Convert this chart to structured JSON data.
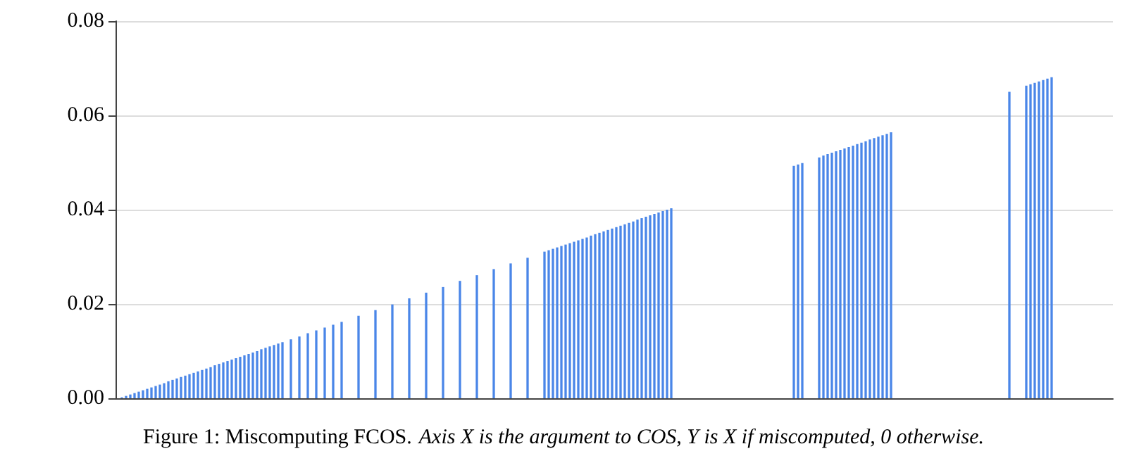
{
  "chart_data": {
    "type": "bar",
    "title": "Figure 1: Miscomputing FCOS.",
    "annotations": [
      "Axis X is the argument to COS, Y is X if miscomputed, 0 otherwise."
    ],
    "categories": [
      null,
      null,
      null,
      null,
      null,
      null,
      null,
      null,
      null,
      null,
      null,
      null,
      null,
      null,
      null,
      null,
      null,
      null,
      null,
      null,
      null,
      null,
      null,
      null,
      null,
      null,
      null,
      null,
      null,
      null,
      null,
      null,
      null,
      null,
      null,
      null,
      null,
      null,
      null,
      null,
      null,
      null,
      null,
      null,
      null,
      null,
      null,
      null,
      null,
      null,
      null,
      null,
      null,
      null,
      null,
      null,
      null,
      null,
      null,
      null,
      null,
      null,
      null,
      null,
      null,
      null,
      null,
      null,
      null,
      null,
      null,
      null,
      null,
      null,
      null,
      null,
      null,
      null,
      null,
      null,
      null,
      null,
      null,
      null,
      null,
      null,
      null,
      null,
      null,
      null,
      null,
      null,
      null,
      null,
      null,
      null,
      null,
      null,
      null,
      null,
      null,
      null,
      null,
      null,
      null,
      null,
      null,
      null,
      null,
      null,
      null,
      null,
      null,
      null,
      null,
      null,
      null,
      null,
      null,
      null,
      null,
      null,
      null,
      null,
      null,
      null,
      null,
      null,
      null,
      null,
      null,
      null,
      null,
      null,
      null,
      null,
      null,
      null,
      null,
      null,
      null,
      null,
      null,
      null,
      null,
      null,
      null,
      null,
      null,
      null,
      null,
      null,
      null,
      null,
      null,
      null,
      null,
      null,
      null,
      null,
      null,
      null,
      null,
      null,
      null,
      null,
      null,
      null,
      null,
      null,
      null,
      null,
      null,
      null,
      null,
      null,
      null,
      null,
      null,
      null,
      null,
      null,
      null,
      null,
      null,
      null,
      null,
      null,
      null,
      null,
      null,
      null,
      null,
      null,
      null,
      null,
      null,
      null,
      null,
      null,
      null,
      null,
      null,
      null,
      null,
      null,
      null,
      null,
      null,
      null,
      null,
      null,
      null,
      null,
      null,
      null,
      null,
      null,
      null,
      null,
      null,
      null,
      null,
      null,
      null,
      null,
      null,
      null,
      null,
      null,
      null,
      null,
      null,
      null,
      null,
      null
    ],
    "values": [
      0,
      0.0002,
      0.0005,
      0.0008,
      0.0011,
      0.0014,
      0.0017,
      0.002,
      0.0023,
      0.0026,
      0.0029,
      0.0032,
      0.0036,
      0.0039,
      0.0042,
      0.0045,
      0.0048,
      0.0051,
      0.0054,
      0.0057,
      0.006,
      0.0063,
      0.0066,
      0.007,
      0.0073,
      0.0076,
      0.0079,
      0.0082,
      0.0085,
      0.0088,
      0.0091,
      0.0094,
      0.0097,
      0.01,
      0.0104,
      0.0107,
      0.011,
      0.0113,
      0.0116,
      0.0119,
      0,
      0.0125,
      0,
      0.0131,
      0,
      0.0138,
      0,
      0.0144,
      0,
      0.015,
      0,
      0.0156,
      0,
      0.0162,
      0,
      0,
      0,
      0.0175,
      0,
      0,
      0,
      0.0187,
      0,
      0,
      0,
      0.0199,
      0,
      0,
      0,
      0.0212,
      0,
      0,
      0,
      0.0224,
      0,
      0,
      0,
      0.0236,
      0,
      0,
      0,
      0.0249,
      0,
      0,
      0,
      0.0261,
      0,
      0,
      0,
      0.0274,
      0,
      0,
      0,
      0.0286,
      0,
      0,
      0,
      0.0298,
      0,
      0,
      0,
      0.0311,
      0.0314,
      0.0317,
      0.032,
      0.0323,
      0.0326,
      0.0329,
      0.0332,
      0.0335,
      0.0338,
      0.0341,
      0.0345,
      0.0348,
      0.0351,
      0.0354,
      0.0357,
      0.036,
      0.0363,
      0.0366,
      0.0369,
      0.0372,
      0.0375,
      0.0379,
      0.0382,
      0.0385,
      0.0388,
      0.0391,
      0.0394,
      0.0397,
      0.04,
      0.0403,
      0,
      0,
      0,
      0,
      0,
      0,
      0,
      0,
      0,
      0,
      0,
      0,
      0,
      0,
      0,
      0,
      0,
      0,
      0,
      0,
      0,
      0,
      0,
      0,
      0,
      0,
      0,
      0,
      0.0493,
      0.0496,
      0.0499,
      0,
      0,
      0,
      0.0511,
      0.0515,
      0.0518,
      0.0521,
      0.0524,
      0.0527,
      0.053,
      0.0533,
      0.0536,
      0.0539,
      0.0542,
      0.0545,
      0.0549,
      0.0552,
      0.0555,
      0.0558,
      0.0561,
      0.0564,
      0,
      0,
      0,
      0,
      0,
      0,
      0,
      0,
      0,
      0,
      0,
      0,
      0,
      0,
      0,
      0,
      0,
      0,
      0,
      0,
      0,
      0,
      0,
      0,
      0,
      0,
      0,
      0.065,
      0,
      0,
      0,
      0.0663,
      0.0666,
      0.0669,
      0.0672,
      0.0675,
      0.0678,
      0.0681,
      0,
      0,
      0,
      0,
      0,
      0,
      0,
      0,
      0,
      0,
      0,
      0,
      0,
      0
    ],
    "color": "#4a86e8",
    "ylim": [
      0,
      0.08
    ],
    "yticks": [
      {
        "value": 0,
        "label": "0.00"
      },
      {
        "value": 0.02,
        "label": "0.02"
      },
      {
        "value": 0.04,
        "label": "0.04"
      },
      {
        "value": 0.06,
        "label": "0.06"
      },
      {
        "value": 0.08,
        "label": "0.08"
      }
    ],
    "grid": "y",
    "tick_labels": "y"
  }
}
